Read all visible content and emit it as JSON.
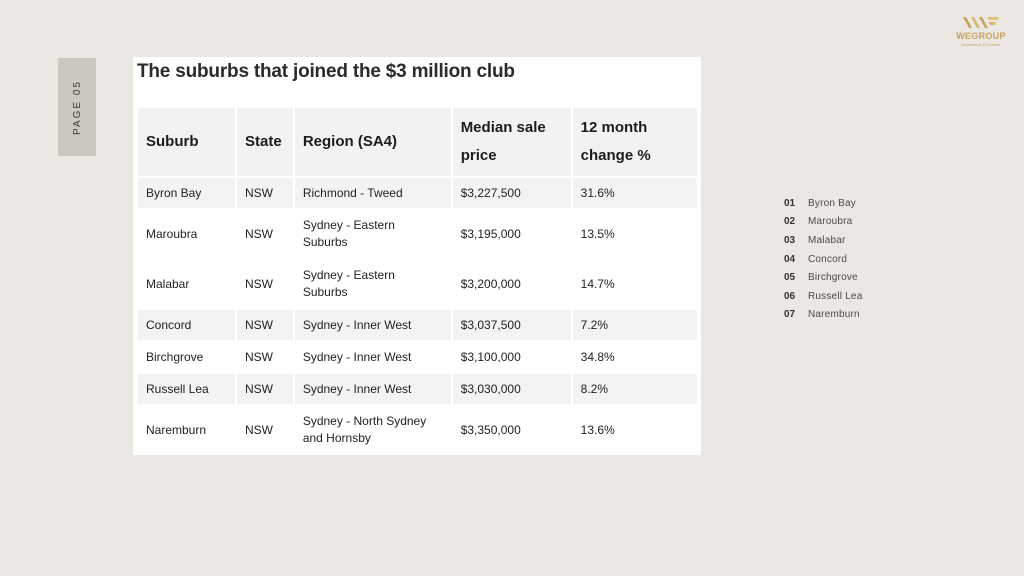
{
  "page_label": "PAGE 05",
  "logo": {
    "brand": "WEGROUP",
    "tagline": "Investment & Finance"
  },
  "title": "The suburbs that joined the $3 million club",
  "table": {
    "headers": [
      "Suburb",
      "State",
      "Region (SA4)",
      "Median sale price",
      "12 month change %"
    ],
    "rows": [
      [
        "Byron Bay",
        "NSW",
        "Richmond - Tweed",
        "$3,227,500",
        "31.6%"
      ],
      [
        "Maroubra",
        "NSW",
        "Sydney - Eastern Suburbs",
        "$3,195,000",
        "13.5%"
      ],
      [
        "Malabar",
        "NSW",
        "Sydney - Eastern Suburbs",
        "$3,200,000",
        "14.7%"
      ],
      [
        "Concord",
        "NSW",
        "Sydney - Inner West",
        "$3,037,500",
        "7.2%"
      ],
      [
        "Birchgrove",
        "NSW",
        "Sydney - Inner West",
        "$3,100,000",
        "34.8%"
      ],
      [
        "Russell Lea",
        "NSW",
        "Sydney - Inner West",
        "$3,030,000",
        "8.2%"
      ],
      [
        "Naremburn",
        "NSW",
        "Sydney - North Sydney and Hornsby",
        "$3,350,000",
        "13.6%"
      ]
    ]
  },
  "index": [
    {
      "num": "01",
      "name": "Byron Bay"
    },
    {
      "num": "02",
      "name": "Maroubra"
    },
    {
      "num": "03",
      "name": "Malabar"
    },
    {
      "num": "04",
      "name": "Concord"
    },
    {
      "num": "05",
      "name": "Birchgrove"
    },
    {
      "num": "06",
      "name": "Russell Lea"
    },
    {
      "num": "07",
      "name": "Naremburn"
    }
  ]
}
